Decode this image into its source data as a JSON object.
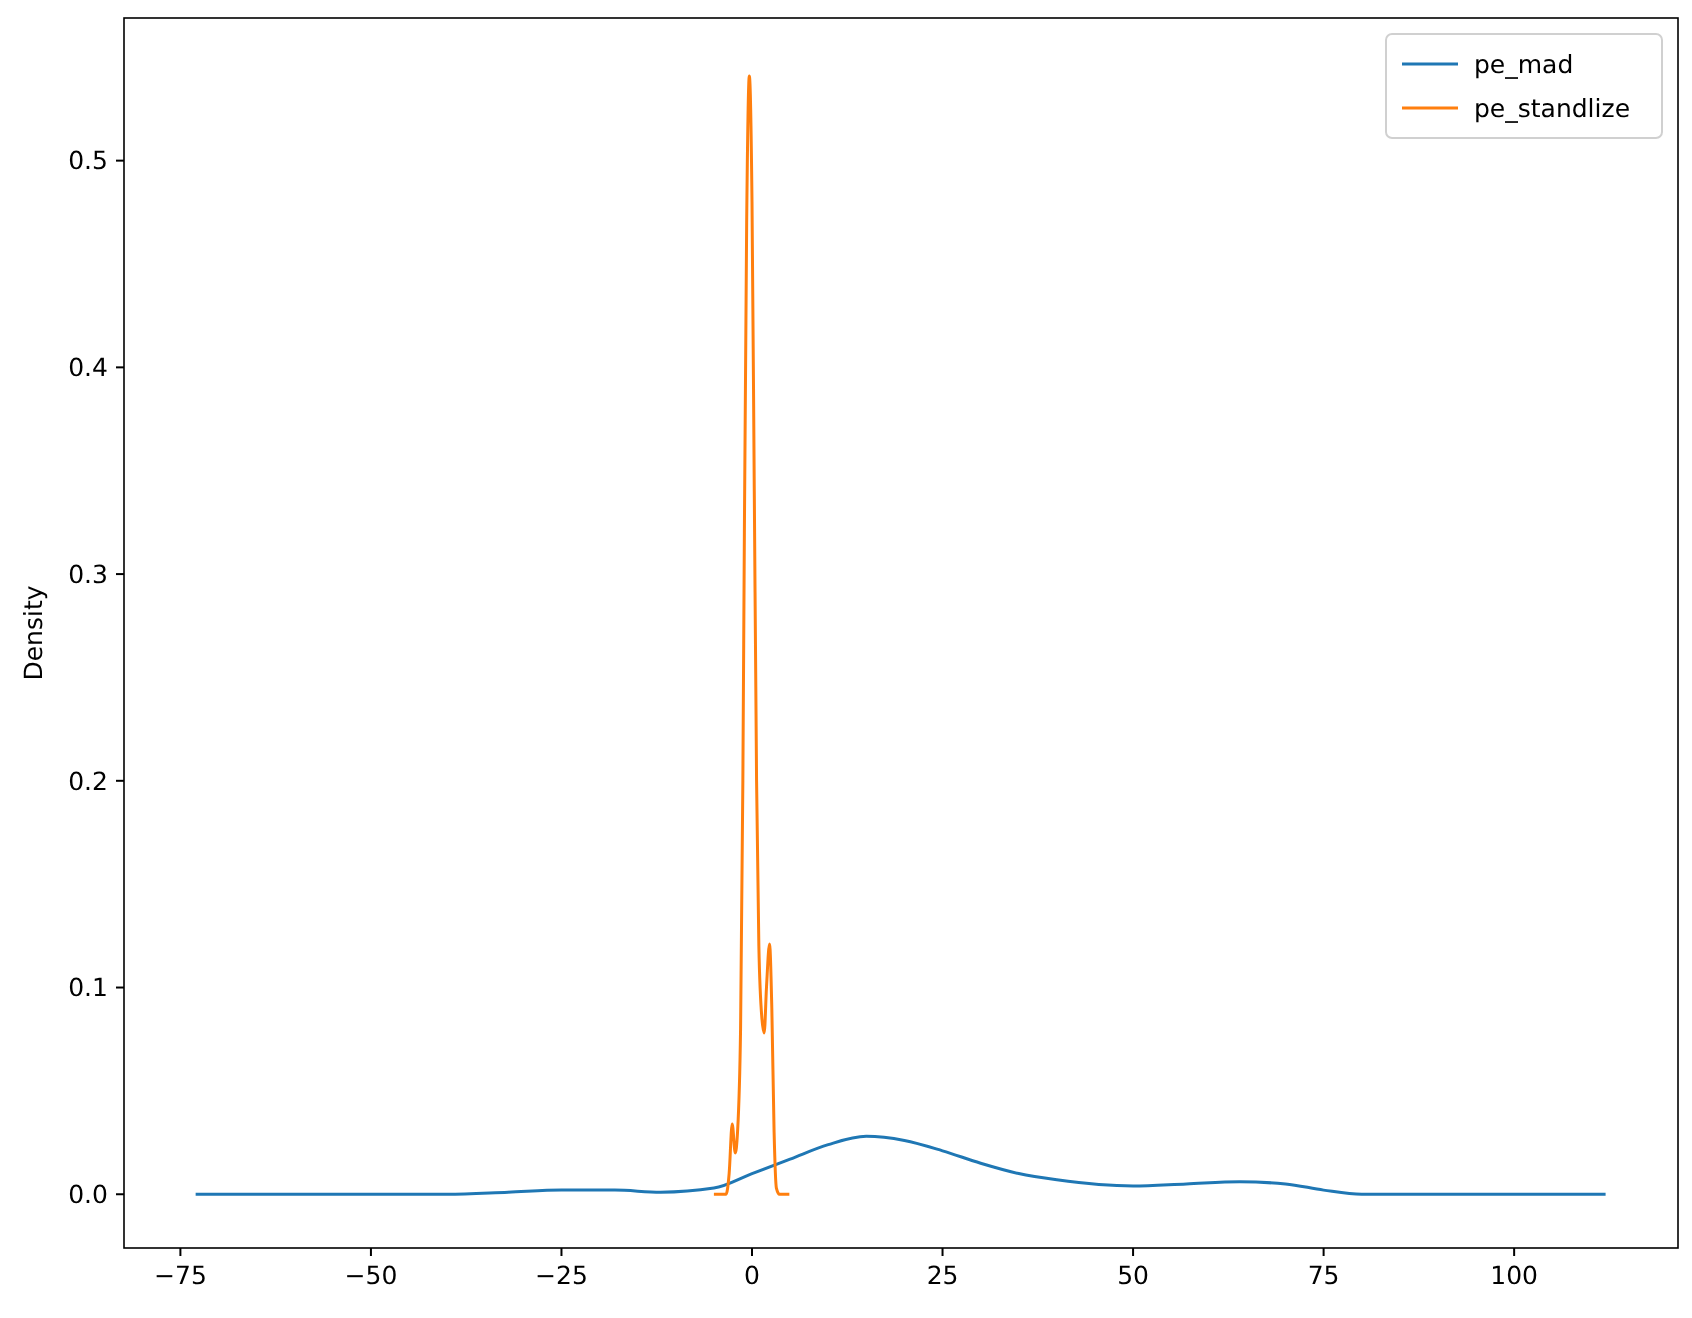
{
  "chart_data": {
    "type": "line",
    "ylabel": "Density",
    "xlim": [
      -82.4,
      121.5
    ],
    "xticks": [
      {
        "value": -75,
        "label": "−75"
      },
      {
        "value": -50,
        "label": "−50"
      },
      {
        "value": -25,
        "label": "−25"
      },
      0,
      25,
      50,
      75,
      100
    ],
    "ylim": [
      -0.026,
      0.569
    ],
    "yticks": [
      {
        "value": 0,
        "label": "0.0"
      },
      {
        "value": 0.1,
        "label": "0.1"
      },
      {
        "value": 0.2,
        "label": "0.2"
      },
      {
        "value": 0.3,
        "label": "0.3"
      },
      {
        "value": 0.4,
        "label": "0.4"
      },
      {
        "value": 0.5,
        "label": "0.5"
      }
    ],
    "grid": false,
    "legend": "top right",
    "series": [
      {
        "name": "pe_mad",
        "color": "#1f77b4",
        "x": [
          -73,
          -55,
          -40,
          -32,
          -25,
          -18,
          -12,
          -5,
          0,
          5,
          10,
          15,
          20,
          25,
          30,
          35,
          40,
          50,
          57,
          64,
          70,
          75,
          80,
          90,
          112
        ],
        "values": [
          0,
          0,
          0,
          0.001,
          0.002,
          0.002,
          0.001,
          0.003,
          0.01,
          0.017,
          0.024,
          0.028,
          0.026,
          0.021,
          0.015,
          0.01,
          0.007,
          0.004,
          0.005,
          0.006,
          0.005,
          0.002,
          0,
          0,
          0
        ]
      },
      {
        "name": "pe_standlize",
        "color": "#ff7f0e",
        "x": [
          -5,
          -3.4,
          -3.0,
          -2.6,
          -2.2,
          -1.9,
          -1.5,
          -1.2,
          -1.0,
          -0.7,
          -0.35,
          0,
          0.3,
          0.6,
          0.9,
          1.3,
          1.6,
          1.9,
          2.3,
          2.6,
          2.9,
          3.2,
          3.6,
          4.9
        ],
        "values": [
          0,
          0,
          0.01,
          0.034,
          0.02,
          0.03,
          0.08,
          0.2,
          0.32,
          0.47,
          0.541,
          0.48,
          0.34,
          0.2,
          0.12,
          0.085,
          0.078,
          0.1,
          0.121,
          0.09,
          0.03,
          0.003,
          0,
          0
        ]
      }
    ]
  }
}
